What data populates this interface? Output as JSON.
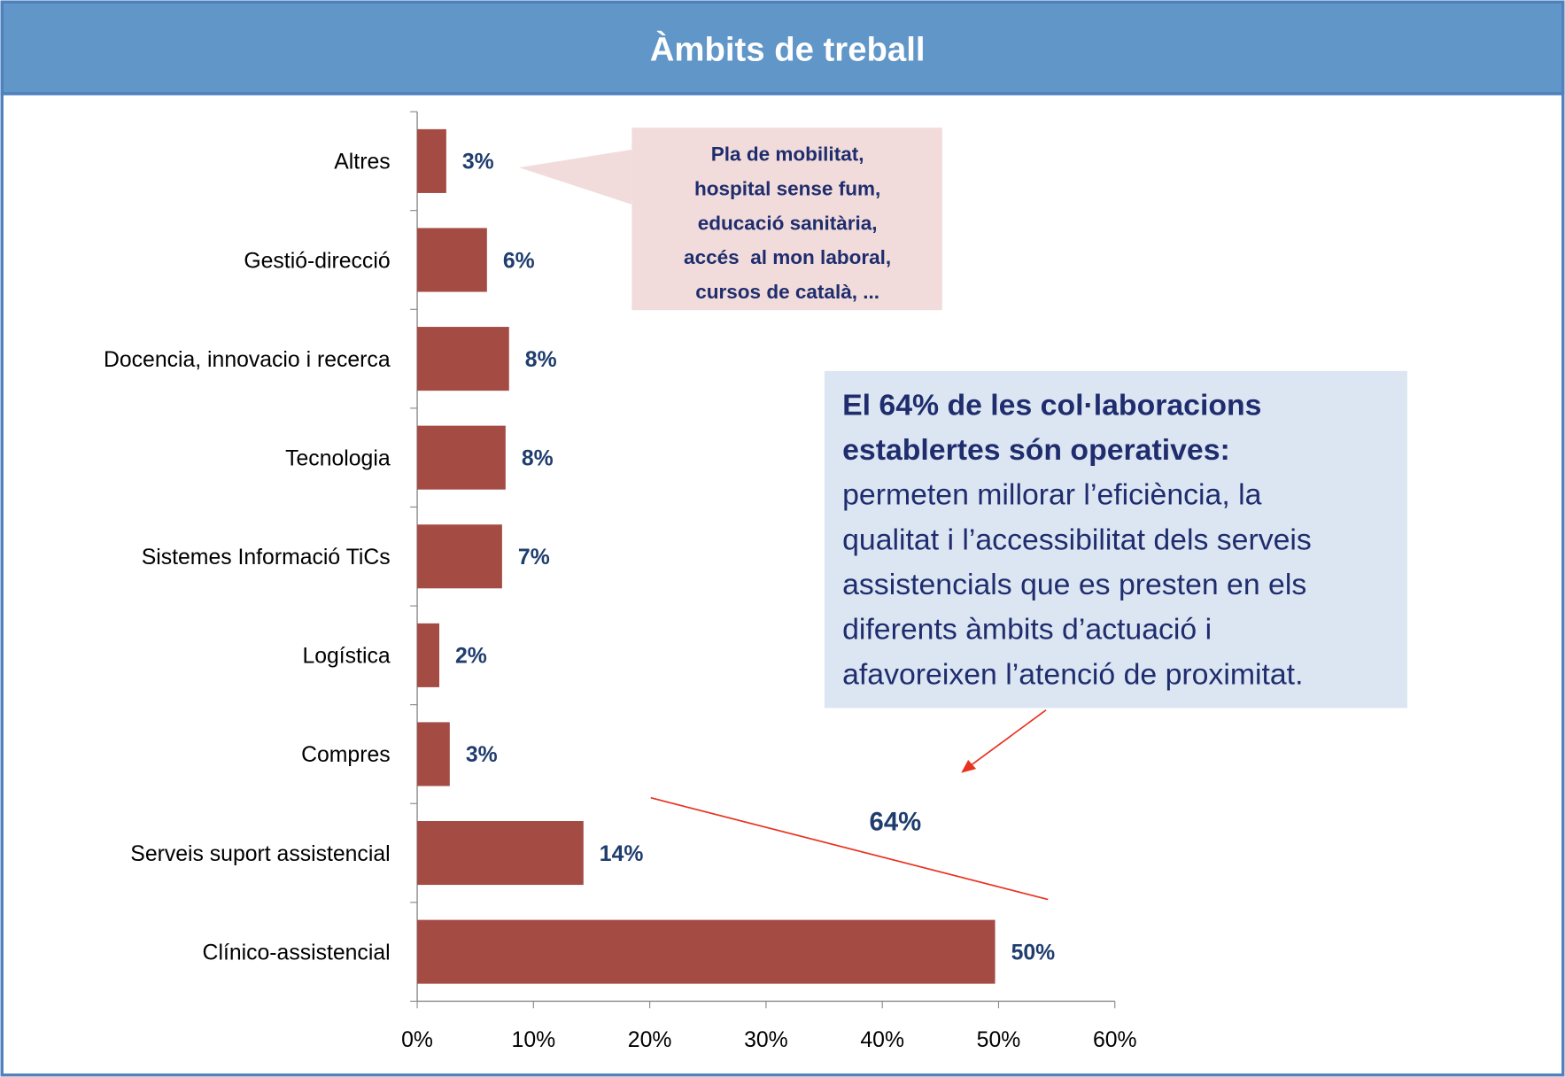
{
  "chart_data": {
    "type": "bar",
    "orientation": "horizontal",
    "title": "Àmbits de treball",
    "categories": [
      "Altres",
      "Gestió-direcció",
      "Docencia, innovacio i recerca",
      "Tecnologia",
      "Sistemes Informació TiCs",
      "Logística",
      "Compres",
      "Serveis suport assistencial",
      "Clínico-assistencial"
    ],
    "values": [
      2.5,
      6.0,
      7.9,
      7.6,
      7.3,
      1.9,
      2.8,
      14.3,
      49.7
    ],
    "value_labels": [
      "3%",
      "6%",
      "8%",
      "8%",
      "7%",
      "2%",
      "3%",
      "14%",
      "50%"
    ],
    "color": "#a44b44",
    "xlim": [
      0,
      60
    ],
    "xticks": [
      {
        "value": 0,
        "label": "0%"
      },
      {
        "value": 10,
        "label": "10%"
      },
      {
        "value": 20,
        "label": "20%"
      },
      {
        "value": 30,
        "label": "30%"
      },
      {
        "value": 40,
        "label": "40%"
      },
      {
        "value": 50,
        "label": "50%"
      },
      {
        "value": 60,
        "label": "60%"
      }
    ],
    "grid": false,
    "callout": [
      "Pla de mobilitat,",
      "hospital sense fum,",
      "educació sanitària,",
      "accés  al mon laboral,",
      "cursos de català, ..."
    ],
    "note_heading": [
      "El 64% de les col·laboracions",
      "establertes són operatives:"
    ],
    "note_body": [
      "permeten millorar l’eficiència, la",
      "qualitat i l’accessibilitat dels serveis",
      "assistencials que es presten en els",
      "diferents àmbits d’actuació i",
      "afavoreixen l’atenció de proximitat."
    ],
    "bracket_label": "64%"
  }
}
